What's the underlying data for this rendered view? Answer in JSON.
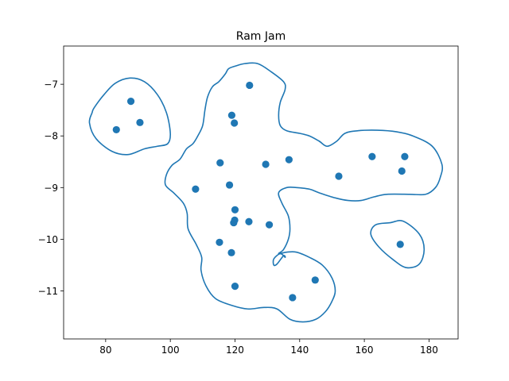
{
  "chart_data": {
    "type": "scatter",
    "title": "Ram Jam",
    "xlabel": "",
    "ylabel": "",
    "xlim": [
      67,
      189
    ],
    "ylim": [
      -11.93,
      -6.26
    ],
    "x_ticks": [
      80,
      100,
      120,
      140,
      160,
      180
    ],
    "y_ticks": [
      -7,
      -8,
      -9,
      -10,
      -11
    ],
    "x_tick_labels": [
      "80",
      "100",
      "120",
      "140",
      "160",
      "180"
    ],
    "y_tick_labels": [
      "−7",
      "−8",
      "−9",
      "−10",
      "−11"
    ],
    "grid": false,
    "color": "#1f77b4",
    "points": [
      {
        "x": 87.8,
        "y": -7.33
      },
      {
        "x": 83.3,
        "y": -7.88
      },
      {
        "x": 90.6,
        "y": -7.74
      },
      {
        "x": 124.5,
        "y": -7.02
      },
      {
        "x": 119.0,
        "y": -7.6
      },
      {
        "x": 119.8,
        "y": -7.75
      },
      {
        "x": 115.4,
        "y": -8.52
      },
      {
        "x": 129.5,
        "y": -8.55
      },
      {
        "x": 136.7,
        "y": -8.46
      },
      {
        "x": 162.4,
        "y": -8.4
      },
      {
        "x": 172.5,
        "y": -8.4
      },
      {
        "x": 171.6,
        "y": -8.68
      },
      {
        "x": 152.1,
        "y": -8.78
      },
      {
        "x": 107.8,
        "y": -9.03
      },
      {
        "x": 118.3,
        "y": -8.95
      },
      {
        "x": 120.0,
        "y": -9.43
      },
      {
        "x": 119.9,
        "y": -9.63
      },
      {
        "x": 119.6,
        "y": -9.68
      },
      {
        "x": 124.3,
        "y": -9.66
      },
      {
        "x": 130.6,
        "y": -9.72
      },
      {
        "x": 115.2,
        "y": -10.06
      },
      {
        "x": 118.9,
        "y": -10.26
      },
      {
        "x": 171.1,
        "y": -10.1
      },
      {
        "x": 120.0,
        "y": -10.91
      },
      {
        "x": 144.8,
        "y": -10.79
      },
      {
        "x": 137.8,
        "y": -11.13
      }
    ],
    "contours": [
      [
        [
          76.5,
          -7.45
        ],
        [
          79.5,
          -7.2
        ],
        [
          83,
          -6.98
        ],
        [
          87.5,
          -6.88
        ],
        [
          92,
          -6.95
        ],
        [
          96,
          -7.2
        ],
        [
          98.8,
          -7.55
        ],
        [
          100,
          -7.95
        ],
        [
          99.2,
          -8.15
        ],
        [
          96,
          -8.2
        ],
        [
          92,
          -8.25
        ],
        [
          87,
          -8.36
        ],
        [
          82,
          -8.3
        ],
        [
          77,
          -8.05
        ],
        [
          75,
          -7.75
        ],
        [
          75.8,
          -7.55
        ],
        [
          76.5,
          -7.45
        ]
      ],
      [
        [
          168,
          -9.68
        ],
        [
          172,
          -9.65
        ],
        [
          177,
          -9.9
        ],
        [
          178.5,
          -10.2
        ],
        [
          177,
          -10.48
        ],
        [
          173,
          -10.55
        ],
        [
          169,
          -10.4
        ],
        [
          164.5,
          -10.15
        ],
        [
          162,
          -9.9
        ],
        [
          163.5,
          -9.72
        ],
        [
          168,
          -9.68
        ]
      ],
      [
        [
          135.5,
          -10.35
        ],
        [
          134,
          -10.28
        ],
        [
          132,
          -10.38
        ],
        [
          132,
          -10.5
        ],
        [
          133,
          -10.48
        ],
        [
          135,
          -10.32
        ],
        [
          135.5,
          -10.35
        ]
      ],
      [
        [
          120,
          -6.65
        ],
        [
          123,
          -6.6
        ],
        [
          127,
          -6.6
        ],
        [
          131,
          -6.75
        ],
        [
          135,
          -6.95
        ],
        [
          135.5,
          -7.1
        ],
        [
          134,
          -7.35
        ],
        [
          133.5,
          -7.6
        ],
        [
          134,
          -7.8
        ],
        [
          136,
          -7.9
        ],
        [
          140,
          -7.95
        ],
        [
          143,
          -8.0
        ],
        [
          146,
          -8.1
        ],
        [
          148.5,
          -8.2
        ],
        [
          151.5,
          -8.1
        ],
        [
          154,
          -7.95
        ],
        [
          158,
          -7.9
        ],
        [
          164,
          -7.89
        ],
        [
          170,
          -7.92
        ],
        [
          175,
          -8.0
        ],
        [
          181,
          -8.2
        ],
        [
          184,
          -8.55
        ],
        [
          183.5,
          -8.8
        ],
        [
          182,
          -9.0
        ],
        [
          179,
          -9.13
        ],
        [
          174,
          -9.13
        ],
        [
          167,
          -9.13
        ],
        [
          163,
          -9.18
        ],
        [
          159,
          -9.25
        ],
        [
          155,
          -9.25
        ],
        [
          151,
          -9.2
        ],
        [
          146,
          -9.1
        ],
        [
          143,
          -9.03
        ],
        [
          139,
          -9.0
        ],
        [
          136,
          -9.0
        ],
        [
          133.5,
          -9.1
        ],
        [
          134.5,
          -9.3
        ],
        [
          136.5,
          -9.55
        ],
        [
          137,
          -9.8
        ],
        [
          136.5,
          -10.0
        ],
        [
          135,
          -10.2
        ],
        [
          133.5,
          -10.28
        ],
        [
          136,
          -10.25
        ],
        [
          139,
          -10.25
        ],
        [
          143,
          -10.35
        ],
        [
          147,
          -10.5
        ],
        [
          150,
          -10.75
        ],
        [
          151,
          -11.0
        ],
        [
          150,
          -11.2
        ],
        [
          148,
          -11.4
        ],
        [
          145,
          -11.55
        ],
        [
          141,
          -11.6
        ],
        [
          137,
          -11.55
        ],
        [
          133,
          -11.35
        ],
        [
          129,
          -11.32
        ],
        [
          124,
          -11.35
        ],
        [
          119,
          -11.28
        ],
        [
          114,
          -11.15
        ],
        [
          111,
          -10.9
        ],
        [
          109.5,
          -10.6
        ],
        [
          109.7,
          -10.35
        ],
        [
          108,
          -10.1
        ],
        [
          105.5,
          -9.8
        ],
        [
          105.2,
          -9.5
        ],
        [
          104,
          -9.3
        ],
        [
          101,
          -9.1
        ],
        [
          98.5,
          -8.95
        ],
        [
          98.8,
          -8.75
        ],
        [
          100.5,
          -8.57
        ],
        [
          103,
          -8.45
        ],
        [
          105,
          -8.25
        ],
        [
          107,
          -8.15
        ],
        [
          108.5,
          -8.0
        ],
        [
          110,
          -7.8
        ],
        [
          110.7,
          -7.5
        ],
        [
          111.5,
          -7.25
        ],
        [
          113,
          -7.05
        ],
        [
          115,
          -6.95
        ],
        [
          117,
          -6.8
        ],
        [
          118,
          -6.7
        ],
        [
          120,
          -6.65
        ]
      ]
    ]
  }
}
